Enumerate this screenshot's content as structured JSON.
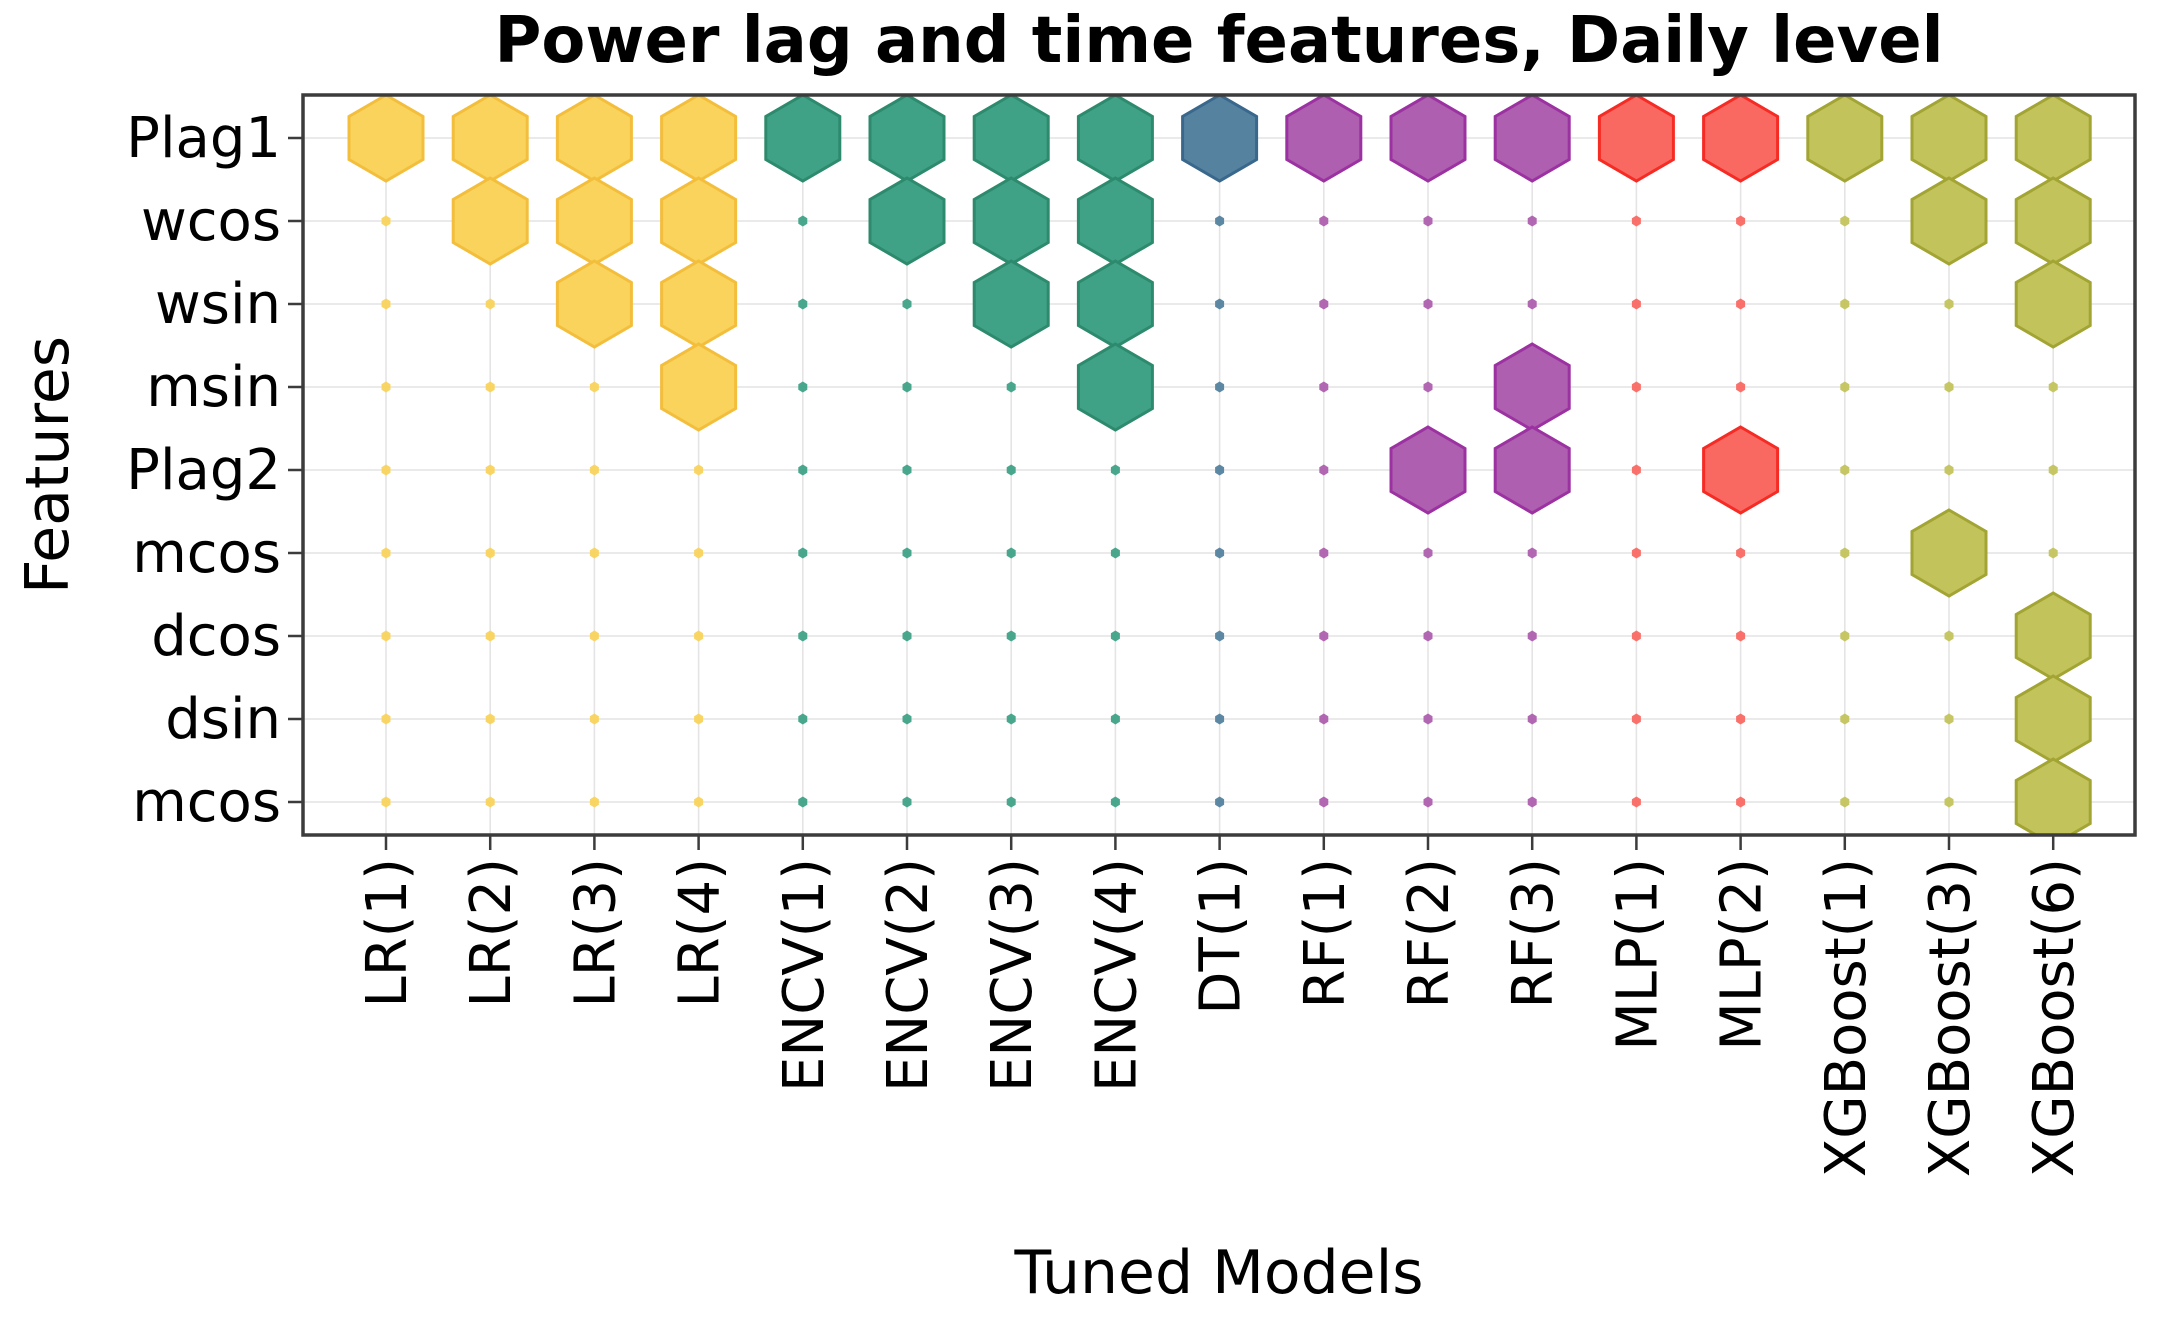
{
  "title": "Power lag and time features, Daily level",
  "chart_data": {
    "type": "scatter",
    "marker": "hexagon",
    "title": "Power lag and time features, Daily level",
    "xlabel": "Tuned Models",
    "ylabel": "Features",
    "x_categories": [
      "LR(1)",
      "LR(2)",
      "LR(3)",
      "LR(4)",
      "ENCV(1)",
      "ENCV(2)",
      "ENCV(3)",
      "ENCV(4)",
      "DT(1)",
      "RF(1)",
      "RF(2)",
      "RF(3)",
      "MLP(1)",
      "MLP(2)",
      "XGBoost(1)",
      "XGBoost(3)",
      "XGBoost(6)"
    ],
    "y_categories": [
      "Plag1",
      "wcos",
      "wsin",
      "msin",
      "Plag2",
      "mcos",
      "dcos",
      "dsin",
      "mcos"
    ],
    "grid": true,
    "legend": "none",
    "minor_markers": "tiny hexagon dot at every model-feature grid intersection, colored by model family",
    "families": {
      "LR": {
        "fill": "#f9d35c",
        "stroke": "#f3be3b"
      },
      "ENCV": {
        "fill": "#3fa287",
        "stroke": "#2d8a6d"
      },
      "DT": {
        "fill": "#54829f",
        "stroke": "#3a678c"
      },
      "RF": {
        "fill": "#ae5faf",
        "stroke": "#9c31a2"
      },
      "MLP": {
        "fill": "#f96962",
        "stroke": "#f52b24"
      },
      "XGBoost": {
        "fill": "#c3c35c",
        "stroke": "#a2a433"
      }
    },
    "models": [
      {
        "label": "LR(1)",
        "family": "LR",
        "selected_features": [
          "Plag1"
        ],
        "selected_rows": [
          0
        ]
      },
      {
        "label": "LR(2)",
        "family": "LR",
        "selected_features": [
          "Plag1",
          "wcos"
        ],
        "selected_rows": [
          0,
          1
        ]
      },
      {
        "label": "LR(3)",
        "family": "LR",
        "selected_features": [
          "Plag1",
          "wcos",
          "wsin"
        ],
        "selected_rows": [
          0,
          1,
          2
        ]
      },
      {
        "label": "LR(4)",
        "family": "LR",
        "selected_features": [
          "Plag1",
          "wcos",
          "wsin",
          "msin"
        ],
        "selected_rows": [
          0,
          1,
          2,
          3
        ]
      },
      {
        "label": "ENCV(1)",
        "family": "ENCV",
        "selected_features": [
          "Plag1"
        ],
        "selected_rows": [
          0
        ]
      },
      {
        "label": "ENCV(2)",
        "family": "ENCV",
        "selected_features": [
          "Plag1",
          "wcos"
        ],
        "selected_rows": [
          0,
          1
        ]
      },
      {
        "label": "ENCV(3)",
        "family": "ENCV",
        "selected_features": [
          "Plag1",
          "wcos",
          "wsin"
        ],
        "selected_rows": [
          0,
          1,
          2
        ]
      },
      {
        "label": "ENCV(4)",
        "family": "ENCV",
        "selected_features": [
          "Plag1",
          "wcos",
          "wsin",
          "msin"
        ],
        "selected_rows": [
          0,
          1,
          2,
          3
        ]
      },
      {
        "label": "DT(1)",
        "family": "DT",
        "selected_features": [
          "Plag1"
        ],
        "selected_rows": [
          0
        ]
      },
      {
        "label": "RF(1)",
        "family": "RF",
        "selected_features": [
          "Plag1"
        ],
        "selected_rows": [
          0
        ]
      },
      {
        "label": "RF(2)",
        "family": "RF",
        "selected_features": [
          "Plag1",
          "Plag2"
        ],
        "selected_rows": [
          0,
          4
        ]
      },
      {
        "label": "RF(3)",
        "family": "RF",
        "selected_features": [
          "Plag1",
          "msin",
          "Plag2"
        ],
        "selected_rows": [
          0,
          3,
          4
        ]
      },
      {
        "label": "MLP(1)",
        "family": "MLP",
        "selected_features": [
          "Plag1"
        ],
        "selected_rows": [
          0
        ]
      },
      {
        "label": "MLP(2)",
        "family": "MLP",
        "selected_features": [
          "Plag1",
          "Plag2"
        ],
        "selected_rows": [
          0,
          4
        ]
      },
      {
        "label": "XGBoost(1)",
        "family": "XGBoost",
        "selected_features": [
          "Plag1"
        ],
        "selected_rows": [
          0
        ]
      },
      {
        "label": "XGBoost(3)",
        "family": "XGBoost",
        "selected_features": [
          "Plag1",
          "wcos",
          "mcos"
        ],
        "selected_rows": [
          0,
          1,
          5
        ]
      },
      {
        "label": "XGBoost(6)",
        "family": "XGBoost",
        "selected_features": [
          "Plag1",
          "wcos",
          "wsin",
          "dcos",
          "dsin",
          "mcos"
        ],
        "selected_rows": [
          0,
          1,
          2,
          6,
          7,
          8
        ]
      }
    ]
  },
  "style_colors": {
    "frame": "#3c3c3c",
    "grid": "#e4e4e4",
    "text": "#000000",
    "background": "#ffffff"
  }
}
